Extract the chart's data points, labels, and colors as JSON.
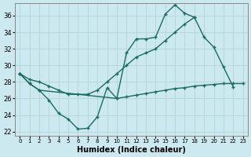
{
  "xlabel": "Humidex (Indice chaleur)",
  "bg_color": "#cce9ef",
  "grid_color": "#b8d8df",
  "line_color": "#1a6b60",
  "xlim": [
    -0.5,
    23.5
  ],
  "ylim": [
    21.5,
    37.5
  ],
  "xticks": [
    0,
    1,
    2,
    3,
    4,
    5,
    6,
    7,
    8,
    9,
    10,
    11,
    12,
    13,
    14,
    15,
    16,
    17,
    18,
    19,
    20,
    21,
    22,
    23
  ],
  "yticks": [
    22,
    24,
    26,
    28,
    30,
    32,
    34,
    36
  ],
  "line1_x": [
    0,
    1,
    2,
    3,
    4,
    5,
    6,
    7,
    8,
    9,
    10,
    11,
    12,
    13,
    14,
    15,
    16,
    17,
    18,
    19,
    20,
    21,
    22
  ],
  "line1_y": [
    29,
    27.8,
    27.0,
    25.8,
    24.2,
    23.5,
    22.3,
    22.4,
    23.8,
    27.3,
    26.0,
    31.5,
    33.2,
    33.2,
    33.4,
    36.2,
    37.3,
    36.3,
    35.8,
    33.4,
    32.2,
    29.8,
    27.4
  ],
  "line2_x": [
    0,
    1,
    2,
    3,
    4,
    5,
    6,
    7,
    8,
    9,
    10,
    11,
    12,
    13,
    14,
    15,
    16,
    17,
    18
  ],
  "line2_y": [
    29.0,
    28.3,
    28.0,
    27.5,
    27.0,
    26.5,
    26.5,
    26.5,
    27.0,
    28.0,
    29.0,
    30.0,
    31.0,
    31.5,
    32.0,
    33.0,
    34.0,
    35.0,
    35.8
  ],
  "line3_x": [
    0,
    1,
    2,
    10,
    11,
    12,
    13,
    14,
    15,
    16,
    17,
    18,
    19,
    20,
    21,
    22,
    23
  ],
  "line3_y": [
    29.0,
    27.8,
    27.0,
    26.0,
    26.2,
    26.4,
    26.6,
    26.8,
    27.0,
    27.2,
    27.3,
    27.5,
    27.6,
    27.7,
    27.8,
    27.8,
    27.8
  ]
}
